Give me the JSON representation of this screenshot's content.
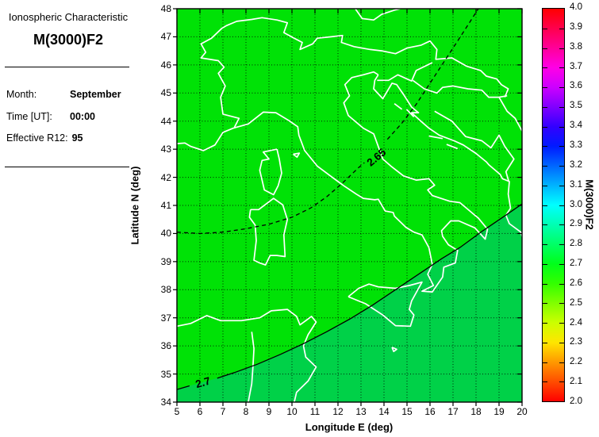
{
  "panel": {
    "title": "Ionospheric Characteristic",
    "subtitle": "M(3000)F2",
    "fields": [
      {
        "label": "Month:",
        "value": "September"
      },
      {
        "label": "Time [UT]:",
        "value": "00:00"
      },
      {
        "label": "Effective R12:",
        "value": "95"
      }
    ]
  },
  "axes": {
    "x_label": "Longitude E (deg)",
    "y_label": "Latitude N (deg)",
    "x_ticks": [
      5,
      6,
      7,
      8,
      9,
      10,
      11,
      12,
      13,
      14,
      15,
      16,
      17,
      18,
      19,
      20
    ],
    "y_ticks": [
      34,
      35,
      36,
      37,
      38,
      39,
      40,
      41,
      42,
      43,
      44,
      45,
      46,
      47,
      48
    ]
  },
  "colorbar": {
    "label": "M(3000)F2",
    "min": 2.0,
    "max": 4.0,
    "tick_labels": [
      "4.0",
      "3.9",
      "3.8",
      "3.7",
      "3.6",
      "3.5",
      "3.4",
      "3.3",
      "3.2",
      "3.1",
      "3.0",
      "2.9",
      "2.8",
      "2.7",
      "2.6",
      "2.5",
      "2.4",
      "2.3",
      "2.2",
      "2.1",
      "2.0"
    ],
    "stops": [
      {
        "v": 2.0,
        "c": "#ff0000"
      },
      {
        "v": 2.1,
        "c": "#ff4d00"
      },
      {
        "v": 2.2,
        "c": "#ff9900"
      },
      {
        "v": 2.3,
        "c": "#ffe600"
      },
      {
        "v": 2.4,
        "c": "#ccff00"
      },
      {
        "v": 2.5,
        "c": "#80ff00"
      },
      {
        "v": 2.6,
        "c": "#33ff00"
      },
      {
        "v": 2.7,
        "c": "#00ff1a"
      },
      {
        "v": 2.8,
        "c": "#00ff66"
      },
      {
        "v": 2.9,
        "c": "#00ffb3"
      },
      {
        "v": 3.0,
        "c": "#00ffff"
      },
      {
        "v": 3.1,
        "c": "#00b3ff"
      },
      {
        "v": 3.2,
        "c": "#0066ff"
      },
      {
        "v": 3.3,
        "c": "#001aff"
      },
      {
        "v": 3.4,
        "c": "#3300ff"
      },
      {
        "v": 3.5,
        "c": "#8000ff"
      },
      {
        "v": 3.6,
        "c": "#cc00ff"
      },
      {
        "v": 3.7,
        "c": "#ff00e6"
      },
      {
        "v": 3.8,
        "c": "#ff0099"
      },
      {
        "v": 3.9,
        "c": "#ff004d"
      },
      {
        "v": 4.0,
        "c": "#ff0000"
      }
    ]
  },
  "map_colors": {
    "base_fill": "#00e206",
    "deep_fill": "#00d148",
    "coast": "#ffffff",
    "contour": "#000000",
    "grid": "#000000"
  },
  "coastlines": [
    [
      [
        5,
        43.2
      ],
      [
        5.35,
        43.22
      ],
      [
        5.6,
        43.1
      ],
      [
        6.15,
        42.95
      ],
      [
        6.65,
        43.15
      ],
      [
        7.0,
        43.6
      ],
      [
        7.45,
        43.75
      ],
      [
        8.1,
        43.9
      ],
      [
        8.75,
        44.32
      ],
      [
        9.3,
        44.3
      ],
      [
        9.85,
        44.03
      ],
      [
        10.25,
        43.8
      ],
      [
        10.3,
        43.5
      ],
      [
        10.55,
        42.95
      ],
      [
        11.1,
        42.4
      ],
      [
        11.75,
        42.0
      ],
      [
        12.25,
        41.7
      ],
      [
        12.8,
        41.4
      ],
      [
        13.1,
        41.25
      ],
      [
        13.6,
        41.2
      ],
      [
        13.75,
        41.22
      ],
      [
        14.05,
        40.8
      ],
      [
        14.4,
        40.75
      ],
      [
        14.45,
        40.62
      ],
      [
        14.95,
        40.22
      ],
      [
        15.3,
        40.05
      ],
      [
        15.65,
        39.95
      ],
      [
        15.95,
        39.5
      ],
      [
        16.1,
        38.9
      ],
      [
        15.9,
        38.55
      ],
      [
        16.15,
        38.15
      ],
      [
        15.65,
        37.95
      ],
      [
        16.1,
        37.92
      ],
      [
        16.55,
        38.45
      ],
      [
        16.6,
        38.8
      ],
      [
        17.1,
        38.95
      ],
      [
        17.2,
        39.4
      ],
      [
        16.8,
        39.6
      ],
      [
        16.55,
        39.9
      ],
      [
        16.5,
        40.1
      ],
      [
        16.9,
        40.45
      ],
      [
        17.25,
        40.45
      ],
      [
        17.95,
        40.2
      ],
      [
        18.4,
        39.8
      ],
      [
        18.5,
        40.15
      ],
      [
        18.1,
        40.55
      ],
      [
        17.95,
        40.65
      ],
      [
        17.3,
        41.1
      ],
      [
        16.85,
        41.15
      ],
      [
        16.1,
        41.35
      ],
      [
        15.9,
        41.55
      ],
      [
        16.2,
        41.72
      ],
      [
        15.95,
        41.95
      ],
      [
        15.4,
        41.9
      ],
      [
        14.85,
        42.05
      ],
      [
        14.3,
        42.4
      ],
      [
        13.95,
        42.65
      ],
      [
        13.55,
        43.55
      ],
      [
        13.1,
        43.75
      ],
      [
        12.45,
        44.2
      ],
      [
        12.25,
        44.65
      ],
      [
        12.5,
        44.9
      ],
      [
        12.3,
        45.3
      ],
      [
        12.6,
        45.55
      ],
      [
        13.1,
        45.65
      ],
      [
        13.55,
        45.75
      ],
      [
        13.75,
        45.65
      ]
    ],
    [
      [
        13.75,
        45.65
      ],
      [
        13.6,
        45.45
      ],
      [
        13.55,
        45.15
      ],
      [
        13.95,
        44.8
      ],
      [
        14.35,
        45.35
      ],
      [
        14.55,
        45.3
      ],
      [
        14.85,
        44.95
      ],
      [
        15.2,
        44.5
      ],
      [
        15.5,
        44.3
      ],
      [
        15.2,
        44.3
      ],
      [
        15.6,
        44.0
      ],
      [
        15.95,
        43.75
      ],
      [
        16.4,
        43.5
      ],
      [
        17.05,
        43.3
      ],
      [
        17.45,
        43.15
      ],
      [
        18.0,
        42.85
      ],
      [
        18.45,
        42.55
      ],
      [
        18.55,
        42.45
      ],
      [
        19.05,
        42.1
      ],
      [
        19.15,
        41.95
      ],
      [
        19.45,
        41.85
      ],
      [
        19.4,
        41.4
      ],
      [
        19.5,
        40.9
      ],
      [
        19.3,
        40.65
      ],
      [
        19.45,
        40.35
      ],
      [
        19.95,
        40.05
      ],
      [
        20,
        39.9
      ]
    ],
    [
      [
        7.5,
        43.78
      ],
      [
        7.7,
        44.1
      ],
      [
        7.0,
        44.25
      ],
      [
        6.9,
        44.85
      ],
      [
        7.1,
        45.25
      ],
      [
        6.8,
        45.7
      ],
      [
        7.05,
        45.92
      ],
      [
        6.8,
        46.15
      ],
      [
        6.05,
        46.25
      ],
      [
        6.25,
        46.45
      ],
      [
        6.05,
        46.75
      ],
      [
        6.5,
        46.95
      ],
      [
        6.95,
        47.3
      ],
      [
        7.15,
        47.4
      ],
      [
        7.6,
        47.55
      ],
      [
        8.25,
        47.62
      ],
      [
        8.7,
        47.68
      ],
      [
        9.35,
        47.6
      ],
      [
        9.8,
        47.5
      ],
      [
        9.65,
        47.15
      ],
      [
        10.1,
        46.95
      ],
      [
        10.45,
        46.8
      ],
      [
        10.35,
        46.55
      ],
      [
        10.9,
        46.75
      ],
      [
        11.1,
        46.95
      ],
      [
        11.7,
        47.0
      ],
      [
        12.2,
        47.05
      ],
      [
        12.15,
        46.8
      ],
      [
        12.7,
        46.65
      ],
      [
        13.4,
        46.55
      ],
      [
        13.9,
        46.5
      ],
      [
        14.5,
        46.4
      ],
      [
        15.0,
        46.6
      ],
      [
        15.6,
        46.7
      ],
      [
        16.0,
        46.85
      ],
      [
        16.3,
        46.55
      ],
      [
        16.25,
        46.2
      ],
      [
        16.95,
        46.25
      ],
      [
        17.6,
        45.95
      ],
      [
        18.2,
        45.8
      ],
      [
        18.45,
        45.6
      ],
      [
        18.9,
        45.5
      ],
      [
        19.1,
        45.3
      ],
      [
        19.4,
        45.15
      ],
      [
        19.25,
        44.85
      ]
    ],
    [
      [
        13.7,
        45.45
      ],
      [
        14.2,
        45.45
      ],
      [
        14.6,
        45.65
      ],
      [
        15.2,
        45.43
      ],
      [
        15.4,
        45.8
      ],
      [
        16.1,
        46.08
      ]
    ],
    [
      [
        15.25,
        45.45
      ],
      [
        15.75,
        45.15
      ],
      [
        16.3,
        45.0
      ],
      [
        16.55,
        45.2
      ],
      [
        17.0,
        45.25
      ],
      [
        17.65,
        45.15
      ],
      [
        18.25,
        45.1
      ],
      [
        18.55,
        44.85
      ],
      [
        19.0,
        44.85
      ],
      [
        19.35,
        44.9
      ]
    ],
    [
      [
        16.2,
        44.35
      ],
      [
        16.95,
        44.0
      ],
      [
        17.55,
        43.45
      ],
      [
        18.25,
        43.3
      ],
      [
        18.65,
        43.05
      ],
      [
        19.0,
        43.5
      ],
      [
        19.25,
        43.1
      ],
      [
        19.65,
        42.65
      ],
      [
        19.3,
        42.2
      ],
      [
        19.42,
        41.86
      ]
    ],
    [
      [
        19.0,
        44.85
      ],
      [
        19.35,
        44.35
      ],
      [
        19.7,
        44.1
      ],
      [
        20,
        43.65
      ]
    ],
    [
      [
        12.75,
        48
      ],
      [
        13.05,
        47.65
      ],
      [
        13.55,
        47.6
      ],
      [
        13.9,
        47.8
      ],
      [
        14.45,
        47.95
      ],
      [
        14.7,
        48
      ]
    ],
    [
      [
        8.2,
        40.85
      ],
      [
        8.55,
        40.85
      ],
      [
        9.2,
        41.25
      ],
      [
        9.6,
        41.02
      ],
      [
        9.8,
        40.5
      ],
      [
        9.65,
        39.95
      ],
      [
        9.7,
        39.18
      ],
      [
        9.35,
        39.22
      ],
      [
        9.05,
        39.22
      ],
      [
        8.85,
        38.88
      ],
      [
        8.6,
        38.95
      ],
      [
        8.35,
        39.05
      ],
      [
        8.45,
        39.75
      ],
      [
        8.4,
        40.3
      ],
      [
        8.15,
        40.58
      ],
      [
        8.2,
        40.85
      ]
    ],
    [
      [
        9.35,
        43.0
      ],
      [
        9.45,
        42.65
      ],
      [
        9.55,
        42.15
      ],
      [
        9.4,
        41.7
      ],
      [
        9.2,
        41.38
      ],
      [
        8.8,
        41.55
      ],
      [
        8.7,
        41.9
      ],
      [
        8.6,
        42.25
      ],
      [
        8.7,
        42.6
      ],
      [
        9.0,
        42.65
      ],
      [
        8.75,
        42.9
      ],
      [
        9.35,
        43.0
      ]
    ],
    [
      [
        12.45,
        37.75
      ],
      [
        12.9,
        38.05
      ],
      [
        13.35,
        38.2
      ],
      [
        13.75,
        38.1
      ],
      [
        14.5,
        38.05
      ],
      [
        15.1,
        38.15
      ],
      [
        15.65,
        38.27
      ],
      [
        15.2,
        37.6
      ],
      [
        15.1,
        37.3
      ],
      [
        15.3,
        37.1
      ],
      [
        15.15,
        36.7
      ],
      [
        14.5,
        36.72
      ],
      [
        13.95,
        37.1
      ],
      [
        13.2,
        37.5
      ],
      [
        12.45,
        37.75
      ]
    ],
    [
      [
        5,
        36.7
      ],
      [
        5.6,
        36.8
      ],
      [
        6.3,
        37.08
      ],
      [
        6.9,
        36.9
      ],
      [
        7.8,
        36.9
      ],
      [
        8.2,
        36.95
      ],
      [
        8.6,
        37.0
      ],
      [
        9.1,
        37.25
      ],
      [
        9.8,
        37.3
      ],
      [
        10.2,
        37.05
      ],
      [
        10.35,
        36.75
      ],
      [
        10.6,
        36.9
      ],
      [
        10.85,
        37.05
      ],
      [
        11.05,
        36.85
      ],
      [
        10.7,
        36.4
      ],
      [
        10.5,
        36.0
      ],
      [
        10.6,
        35.6
      ],
      [
        11.05,
        35.25
      ],
      [
        10.7,
        34.75
      ],
      [
        10.2,
        34.35
      ],
      [
        10.1,
        34.0
      ]
    ],
    [
      [
        8.25,
        36.5
      ],
      [
        8.35,
        35.9
      ],
      [
        8.3,
        35.2
      ],
      [
        8.25,
        34.65
      ],
      [
        8.1,
        34.0
      ]
    ],
    [
      [
        14.35,
        35.95
      ],
      [
        14.55,
        35.88
      ],
      [
        14.42,
        35.8
      ],
      [
        14.35,
        35.95
      ]
    ],
    [
      [
        10.05,
        42.82
      ],
      [
        10.32,
        42.86
      ],
      [
        10.22,
        42.72
      ],
      [
        10.05,
        42.82
      ]
    ],
    [
      [
        14.45,
        44.62
      ],
      [
        14.78,
        44.42
      ]
    ],
    [
      [
        14.98,
        44.42
      ],
      [
        15.3,
        44.15
      ]
    ],
    [
      [
        15.95,
        43.47
      ],
      [
        16.55,
        43.38
      ]
    ],
    [
      [
        16.72,
        43.17
      ],
      [
        17.2,
        43.02
      ]
    ]
  ],
  "chart_data": {
    "type": "heatmap",
    "title": "M(3000)F2 over Italy region",
    "xlabel": "Longitude E (deg)",
    "ylabel": "Latitude N (deg)",
    "xlim": [
      5,
      20
    ],
    "ylim": [
      34,
      48
    ],
    "zlabel": "M(3000)F2",
    "zlim": [
      2.0,
      4.0
    ],
    "grid": true,
    "legend_position": "right-colorbar",
    "field_range_on_map": [
      2.6,
      2.75
    ],
    "contours": [
      {
        "value": 2.65,
        "label": "2.65",
        "line_style": "dashed",
        "label_pos": {
          "lon": 13.69,
          "lat": 42.69
        },
        "label_rotation_deg": -40,
        "fill_below_right": false,
        "segments": [
          [
            [
              5,
              40.05
            ],
            [
              6,
              40.0
            ],
            [
              7,
              40.05
            ],
            [
              8,
              40.17
            ],
            [
              9,
              40.33
            ],
            [
              10,
              40.58
            ],
            [
              10.8,
              40.9
            ],
            [
              11.5,
              41.3
            ],
            [
              12.2,
              41.8
            ],
            [
              12.9,
              42.35
            ],
            [
              13.15,
              42.52
            ]
          ],
          [
            [
              14.15,
              43.35
            ],
            [
              14.8,
              43.95
            ],
            [
              15.4,
              44.6
            ],
            [
              16.0,
              45.35
            ],
            [
              16.6,
              46.1
            ],
            [
              17.2,
              46.85
            ],
            [
              17.75,
              47.55
            ],
            [
              18.1,
              48.0
            ]
          ]
        ]
      },
      {
        "value": 2.7,
        "label": "2.7",
        "line_style": "solid",
        "label_pos": {
          "lon": 6.14,
          "lat": 34.67
        },
        "label_rotation_deg": -16,
        "fill_below_right": true,
        "segments": [
          [
            [
              5,
              34.45
            ],
            [
              5.55,
              34.58
            ]
          ],
          [
            [
              6.75,
              34.85
            ],
            [
              7.5,
              35.05
            ],
            [
              8.5,
              35.35
            ],
            [
              9.5,
              35.7
            ],
            [
              10.5,
              36.08
            ],
            [
              11.5,
              36.5
            ],
            [
              12.5,
              36.95
            ],
            [
              13.5,
              37.45
            ],
            [
              14.5,
              38.0
            ],
            [
              15.5,
              38.55
            ],
            [
              16.5,
              39.1
            ],
            [
              17.3,
              39.5
            ],
            [
              18.3,
              40.1
            ],
            [
              19.2,
              40.6
            ],
            [
              20,
              41.05
            ]
          ]
        ]
      }
    ]
  }
}
